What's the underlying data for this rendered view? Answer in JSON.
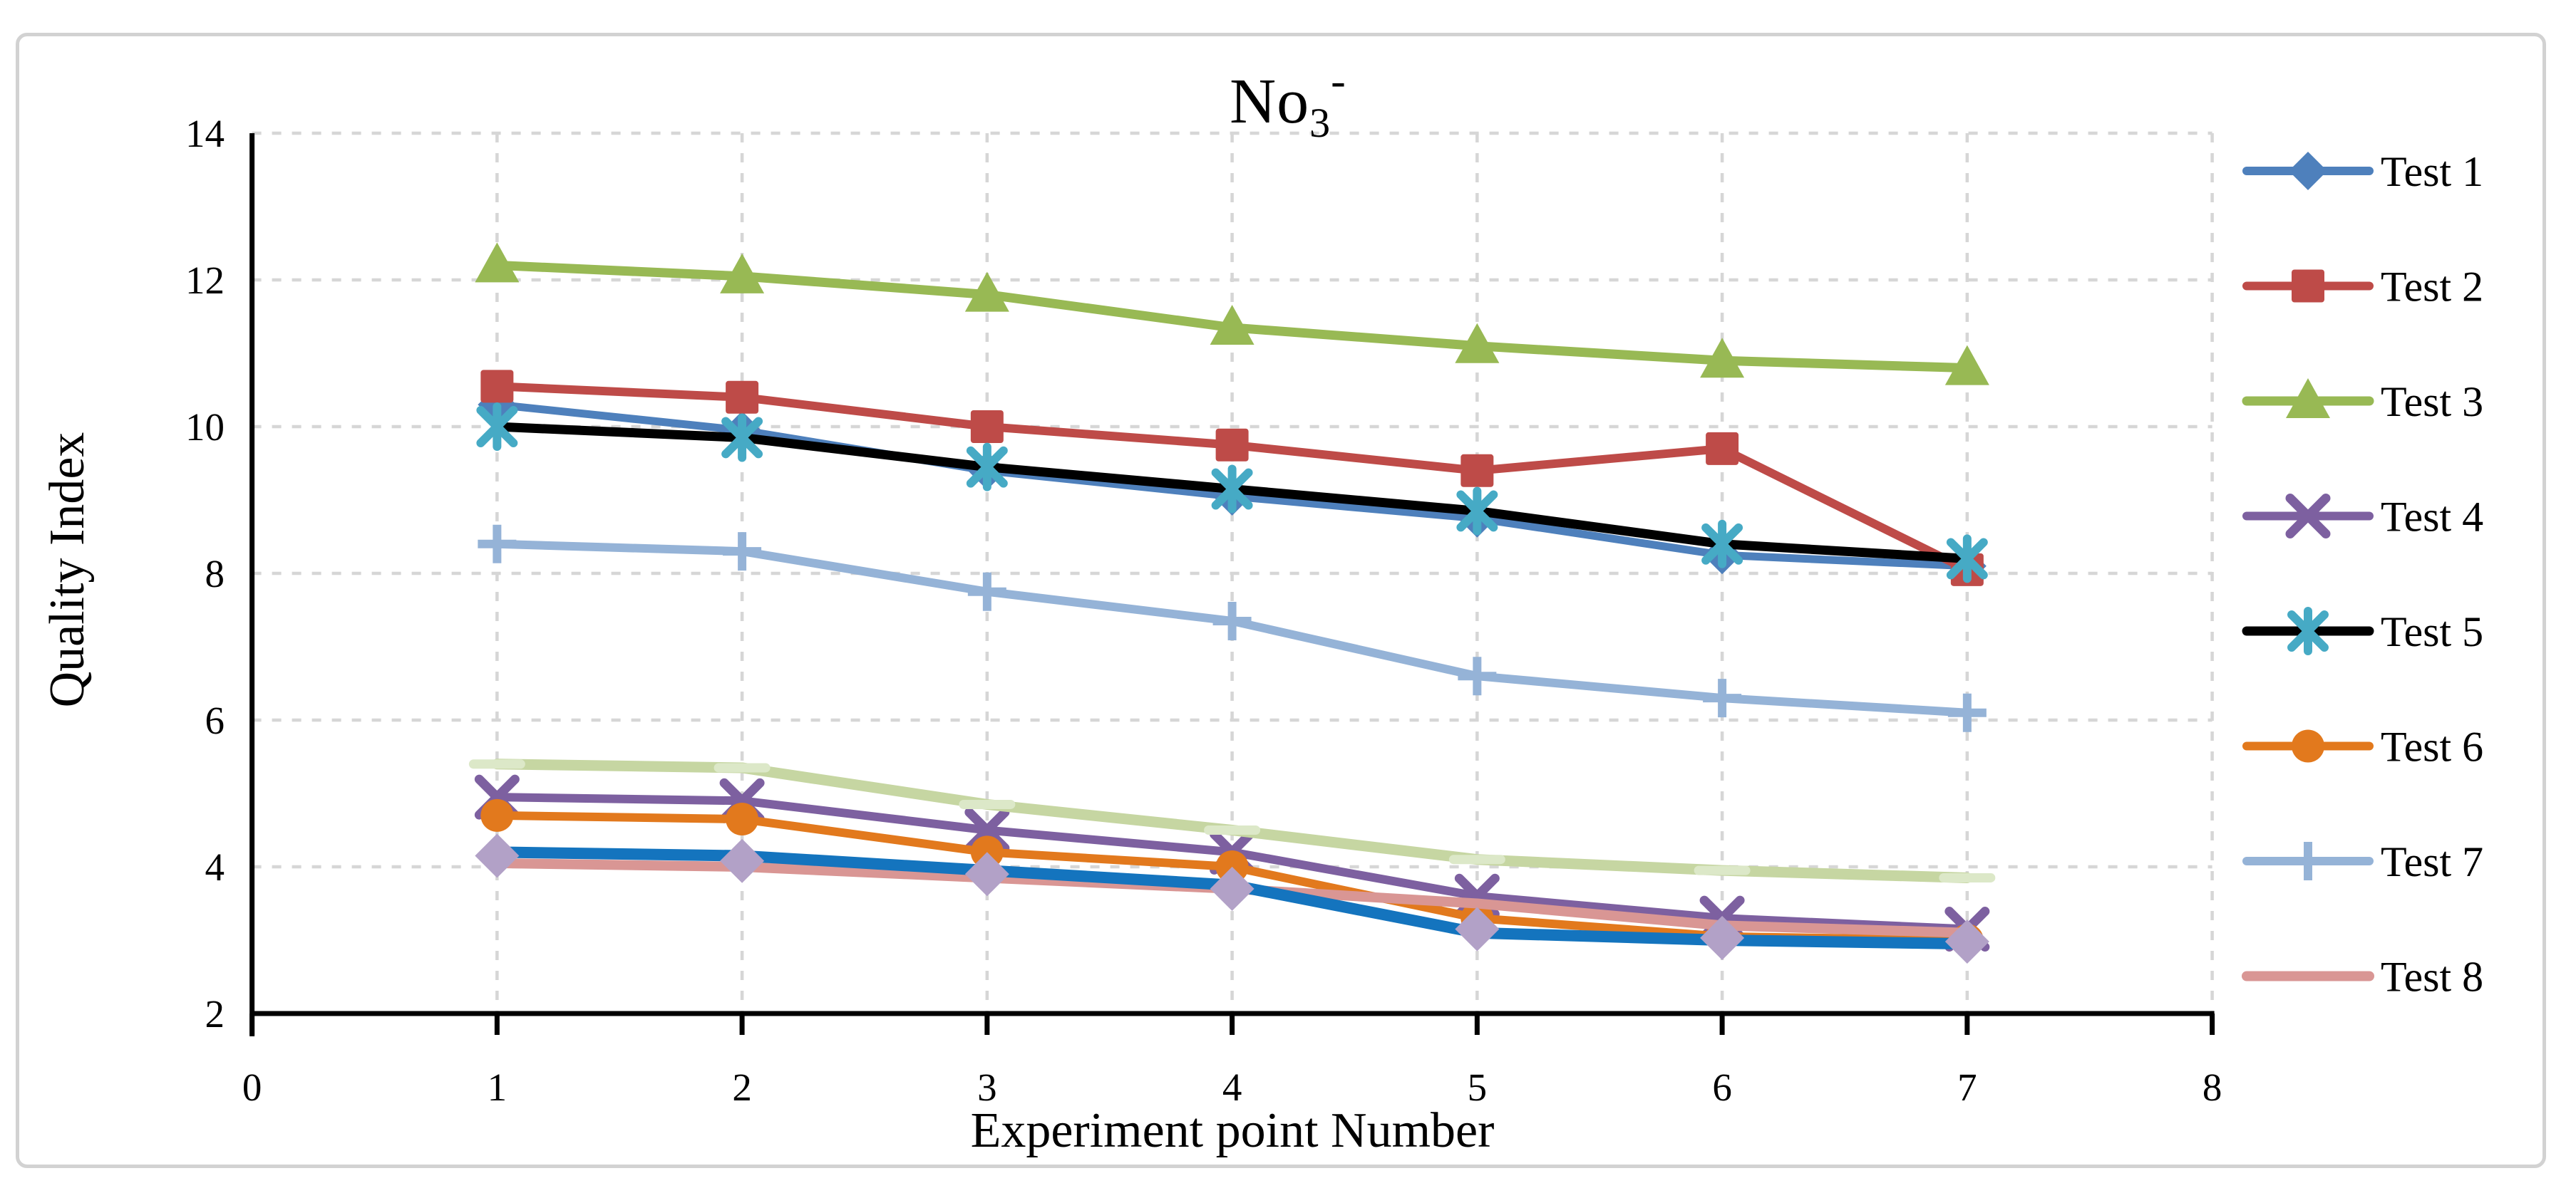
{
  "title": {
    "base": "No",
    "sub": "3",
    "sup": "-"
  },
  "x_axis_title": "Experiment point Number",
  "y_axis_title": "Quality Index",
  "legend": {
    "position": "right",
    "entries": [
      "Test 1",
      "Test 2",
      "Test 3",
      "Test 4",
      "Test 5",
      "Test 6",
      "Test 7",
      "Test 8"
    ]
  },
  "colors": {
    "grid": "#d6d6d6",
    "axis": "#000000",
    "frame_border": "#d2d2d2",
    "text": "#000000"
  },
  "chart_data": {
    "type": "line",
    "title": "No3-",
    "xlabel": "Experiment point Number",
    "ylabel": "Quality Index",
    "xlim": [
      0,
      8
    ],
    "ylim": [
      2,
      14
    ],
    "x_tick_labels": [
      "0",
      "1",
      "2",
      "3",
      "4",
      "5",
      "6",
      "7",
      "8"
    ],
    "x_tick_values": [
      0,
      1,
      2,
      3,
      4,
      5,
      6,
      7,
      8
    ],
    "y_tick_labels": [
      "2",
      "4",
      "6",
      "8",
      "10",
      "12",
      "14"
    ],
    "y_tick_values": [
      2,
      4,
      6,
      8,
      10,
      12,
      14
    ],
    "grid": "dashed, horizontal and vertical",
    "legend_position": "right",
    "x": [
      1,
      2,
      3,
      4,
      5,
      6,
      7
    ],
    "series": [
      {
        "name": "Test 1",
        "in_legend": true,
        "color": "#4e80bc",
        "marker": "diamond",
        "marker_color": "#4e80bc",
        "marker_size": 27,
        "line_width": 11,
        "values": [
          10.3,
          9.95,
          9.4,
          9.05,
          8.75,
          8.25,
          8.1
        ]
      },
      {
        "name": "Test 2",
        "in_legend": true,
        "color": "#be4b48",
        "marker": "square",
        "marker_color": "#be4b48",
        "marker_size": 23,
        "line_width": 12,
        "values": [
          10.55,
          10.4,
          10.0,
          9.75,
          9.4,
          9.7,
          8.05
        ]
      },
      {
        "name": "Test 3",
        "in_legend": true,
        "color": "#98b954",
        "marker": "triangle",
        "marker_color": "#98b954",
        "marker_size": 30,
        "line_width": 13,
        "values": [
          12.2,
          12.05,
          11.8,
          11.35,
          11.1,
          10.9,
          10.8
        ]
      },
      {
        "name": "Test 4",
        "in_legend": true,
        "color": "#7d60a0",
        "marker": "x",
        "marker_color": "#7d60a0",
        "marker_size": 25,
        "line_width": 12,
        "values": [
          4.95,
          4.9,
          4.5,
          4.2,
          3.6,
          3.3,
          3.15
        ]
      },
      {
        "name": "Test 5",
        "in_legend": true,
        "color": "#000000",
        "marker": "asterisk",
        "marker_color": "#46aac5",
        "marker_size": 28,
        "line_width": 13,
        "values": [
          10.0,
          9.85,
          9.45,
          9.15,
          8.85,
          8.4,
          8.2
        ]
      },
      {
        "name": "Test 6",
        "in_legend": true,
        "color": "#e2791d",
        "marker": "circle",
        "marker_color": "#e2791d",
        "marker_size": 23,
        "line_width": 12,
        "values": [
          4.7,
          4.65,
          4.2,
          4.0,
          3.3,
          3.05,
          3.0
        ]
      },
      {
        "name": "Test 7",
        "in_legend": true,
        "color": "#95b3d7",
        "marker": "plus",
        "marker_color": "#95b3d7",
        "marker_size": 27,
        "line_width": 12,
        "values": [
          8.4,
          8.3,
          7.75,
          7.35,
          6.6,
          6.3,
          6.1
        ]
      },
      {
        "name": "Test 8",
        "in_legend": true,
        "color": "#d99694",
        "marker": "none",
        "marker_color": "#d99694",
        "marker_size": 0,
        "line_width": 14,
        "values": [
          4.05,
          4.0,
          3.85,
          3.7,
          3.5,
          3.2,
          3.1
        ]
      },
      {
        "name": "Series 9 (unlabeled blue line)",
        "in_legend": false,
        "color": "#1474be",
        "marker": "none",
        "marker_color": "#1474be",
        "marker_size": 0,
        "line_width": 16,
        "values": [
          4.2,
          4.15,
          3.95,
          3.75,
          3.1,
          3.0,
          2.95
        ]
      },
      {
        "name": "Series 10 (unlabeled lavender diamonds)",
        "in_legend": false,
        "color": "#b2a1c7",
        "marker": "diamond",
        "marker_color": "#b2a1c7",
        "marker_size": 31,
        "line_width": 0,
        "values": [
          4.15,
          4.08,
          3.9,
          3.7,
          3.15,
          3.03,
          2.98
        ]
      },
      {
        "name": "Series 11 (unlabeled light green line)",
        "in_legend": false,
        "color": "#c6d6a2",
        "marker": "dash",
        "marker_color": "#dce8c8",
        "marker_size": 33,
        "line_width": 15,
        "values": [
          5.4,
          5.35,
          4.85,
          4.5,
          4.1,
          3.95,
          3.85
        ]
      }
    ]
  }
}
